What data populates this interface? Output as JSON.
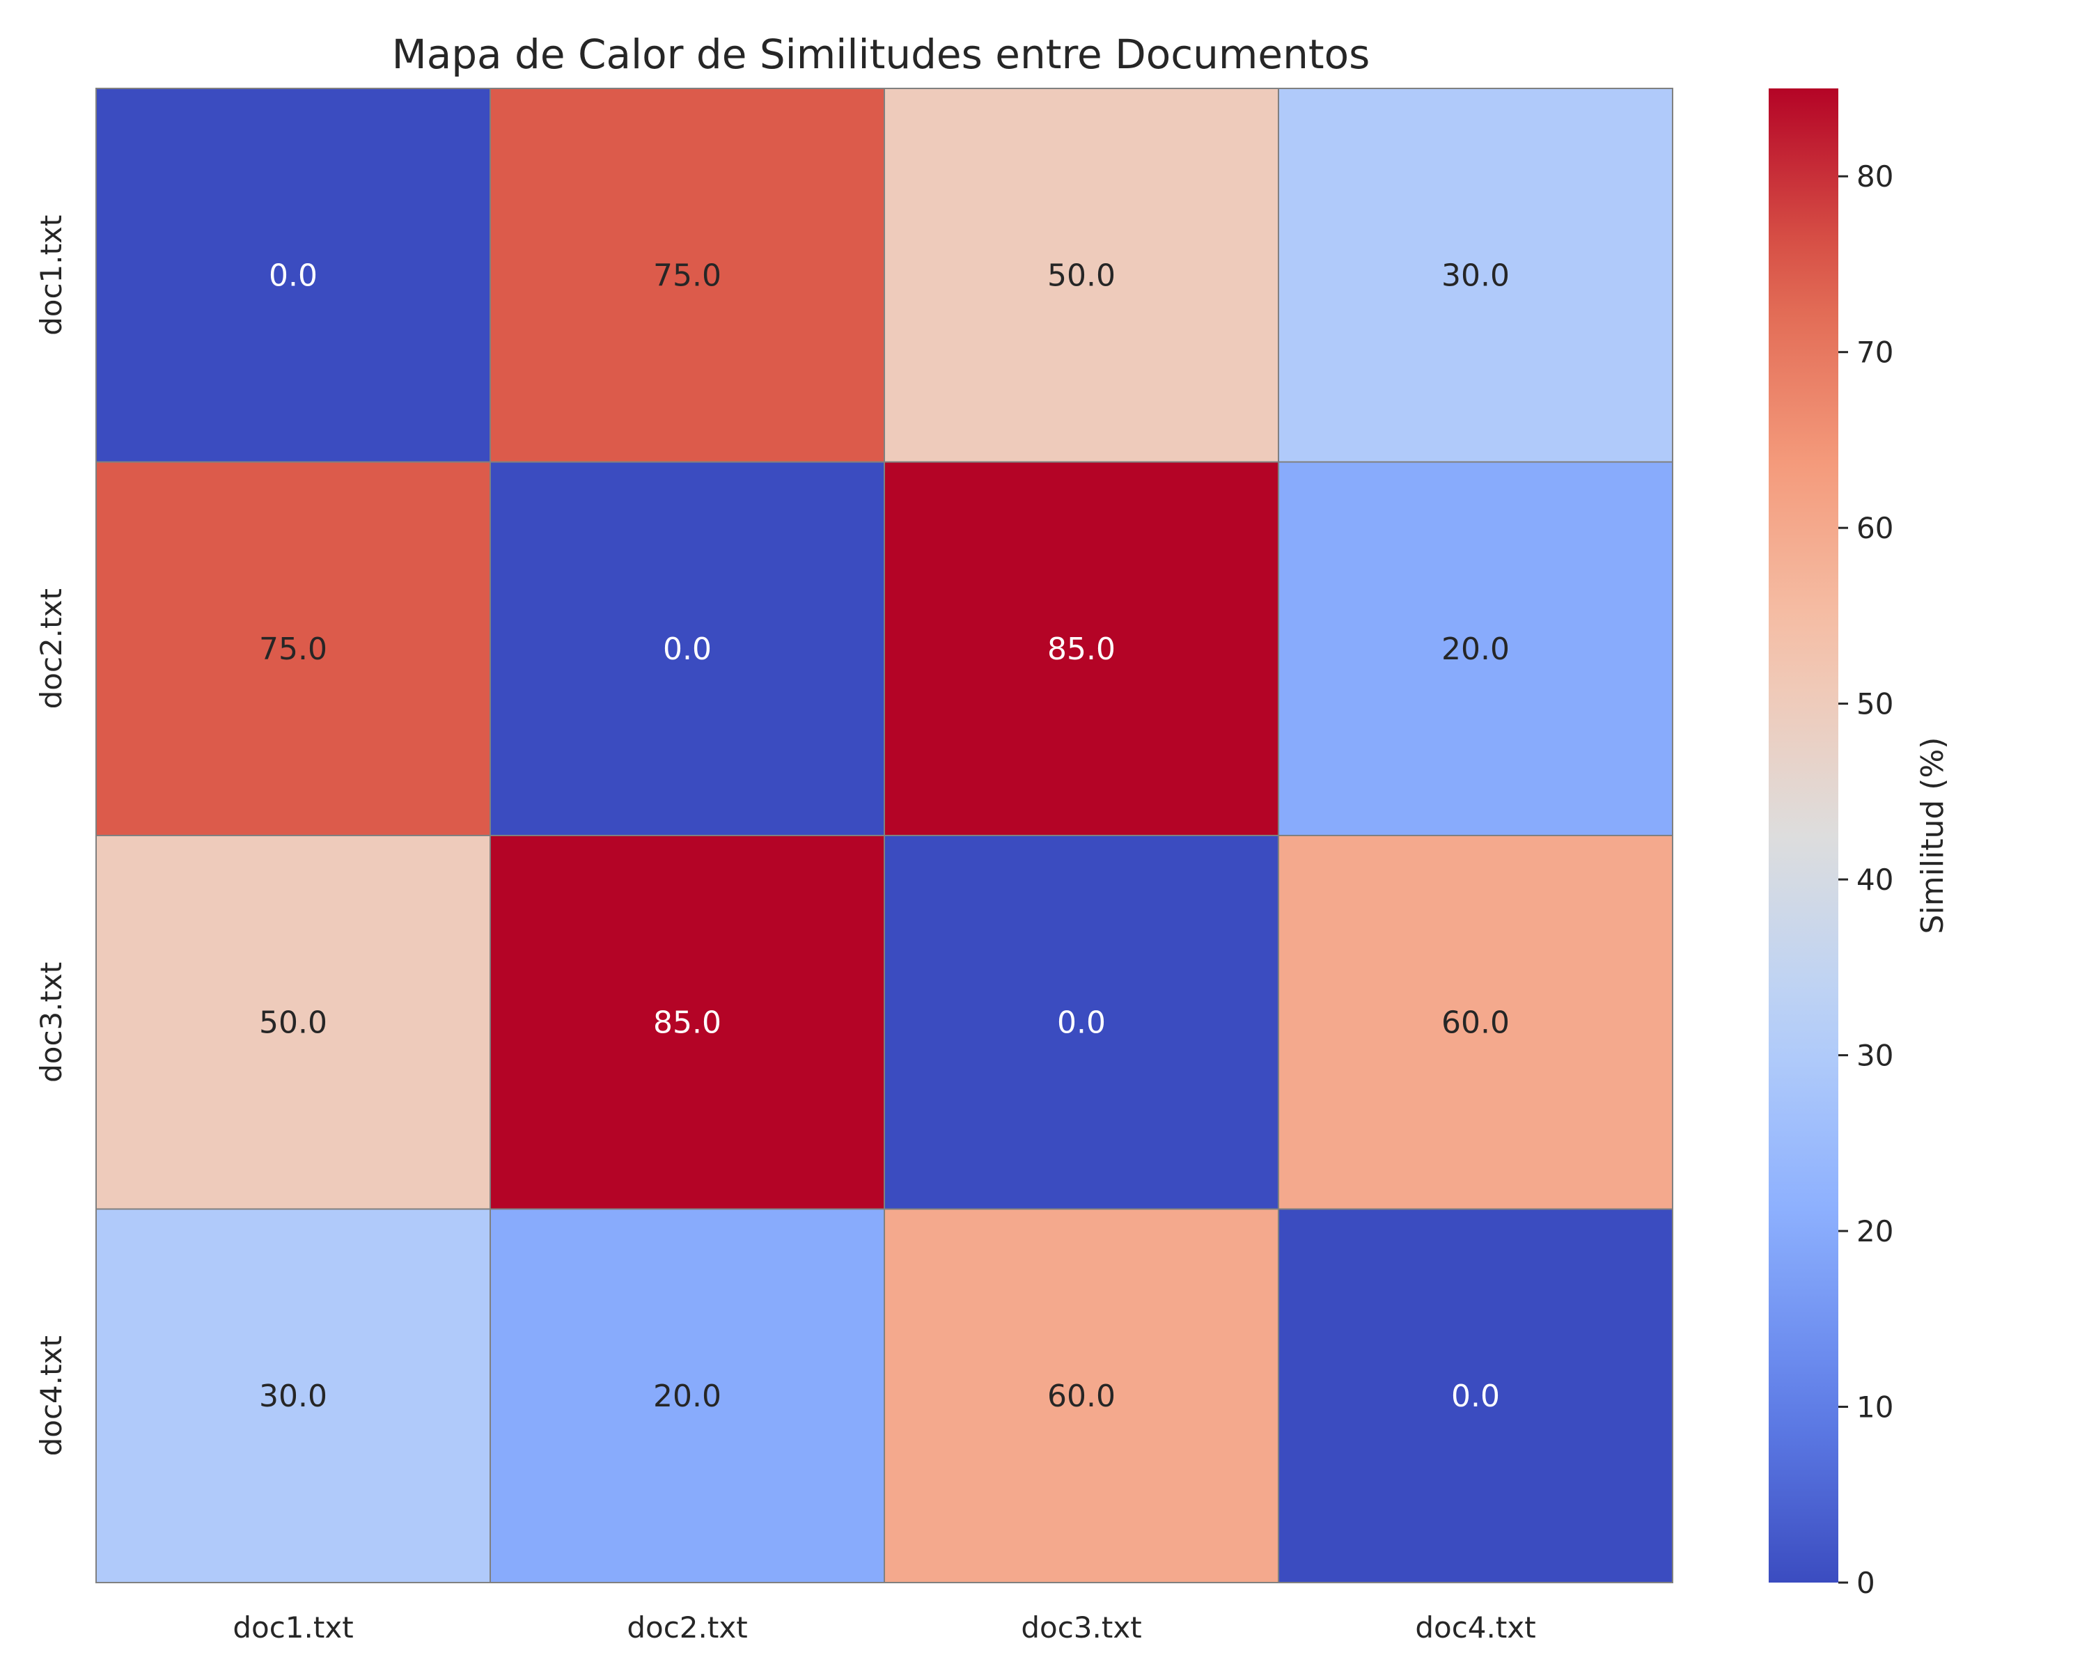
{
  "chart_data": {
    "type": "heatmap",
    "title": "Mapa de Calor de Similitudes entre Documentos",
    "x_categories": [
      "doc1.txt",
      "doc2.txt",
      "doc3.txt",
      "doc4.txt"
    ],
    "y_categories": [
      "doc1.txt",
      "doc2.txt",
      "doc3.txt",
      "doc4.txt"
    ],
    "values": [
      [
        0.0,
        75.0,
        50.0,
        30.0
      ],
      [
        75.0,
        0.0,
        85.0,
        20.0
      ],
      [
        50.0,
        85.0,
        0.0,
        60.0
      ],
      [
        30.0,
        20.0,
        60.0,
        0.0
      ]
    ],
    "cell_labels": [
      [
        "0.0",
        "75.0",
        "50.0",
        "30.0"
      ],
      [
        "75.0",
        "0.0",
        "85.0",
        "20.0"
      ],
      [
        "50.0",
        "85.0",
        "0.0",
        "60.0"
      ],
      [
        "30.0",
        "20.0",
        "60.0",
        "0.0"
      ]
    ],
    "colormap": "coolwarm",
    "vmin": 0,
    "vmax": 85,
    "colorbar": {
      "label": "Similitud (%)",
      "ticks": [
        0,
        10,
        20,
        30,
        40,
        50,
        60,
        70,
        80
      ]
    },
    "cell_edge_color": "#808080"
  }
}
